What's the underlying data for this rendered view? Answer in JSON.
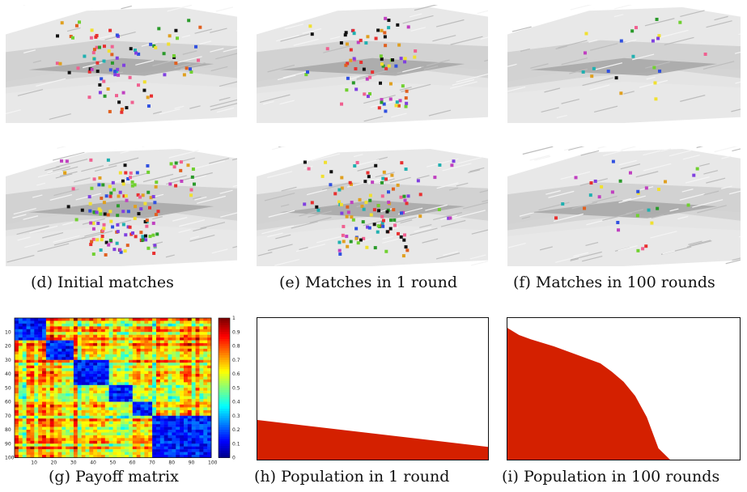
{
  "captions": {
    "d": "(d) Initial matches",
    "e": "(e) Matches in 1 round",
    "f": "(f) Matches in 100 rounds",
    "g": "(g) Payoff matrix",
    "h": "(h) Population in 1 round",
    "i": "(i) Population in 100 rounds"
  },
  "colors": {
    "terrain_light": "#e6e6e6",
    "terrain_mid": "#cfcfcf",
    "terrain_dark": "#a9a9a9",
    "population_fill": "#d42000"
  },
  "chart_data": [
    {
      "type": "heatmap",
      "title": "",
      "x_ticks": [
        "10",
        "20",
        "30",
        "40",
        "50",
        "60",
        "70",
        "80",
        "90",
        "100"
      ],
      "y_ticks": [
        "10",
        "20",
        "30",
        "40",
        "50",
        "60",
        "70",
        "80",
        "90",
        "100"
      ],
      "colorbar_ticks": [
        "0",
        "0.1",
        "0.2",
        "0.3",
        "0.4",
        "0.5",
        "0.6",
        "0.7",
        "0.8",
        "0.9",
        "1"
      ],
      "colormap": "jet",
      "range": [
        0,
        1
      ]
    },
    {
      "type": "area",
      "title": "",
      "x_range": [
        0,
        100
      ],
      "y_range": [
        0,
        1
      ],
      "x": [
        0,
        100
      ],
      "y": [
        0.28,
        0.09
      ]
    },
    {
      "type": "area",
      "title": "",
      "x_range": [
        0,
        100
      ],
      "y_range": [
        0,
        1
      ],
      "x": [
        0,
        5,
        10,
        20,
        30,
        40,
        45,
        50,
        55,
        60,
        65,
        70,
        100
      ],
      "y": [
        0.93,
        0.88,
        0.85,
        0.8,
        0.74,
        0.68,
        0.62,
        0.55,
        0.45,
        0.3,
        0.08,
        0.0,
        0.0
      ]
    }
  ]
}
